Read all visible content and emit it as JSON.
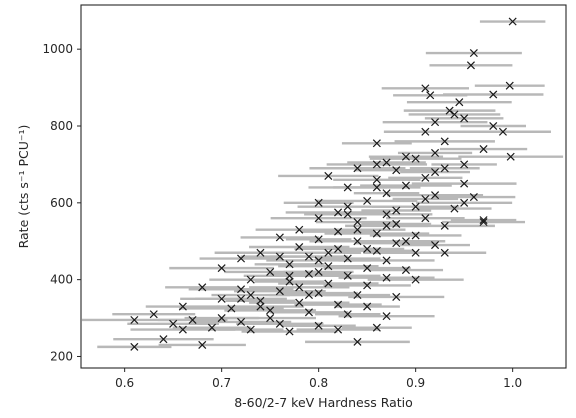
{
  "chart_data": {
    "type": "scatter",
    "title": "",
    "xlabel": "8-60/2-7 keV Hardness Ratio",
    "ylabel": "Rate (cts s⁻¹ PCU⁻¹)",
    "xlim": [
      0.555,
      1.055
    ],
    "ylim": [
      170,
      1115
    ],
    "xticks": [
      0.6,
      0.7,
      0.8,
      0.9,
      1.0
    ],
    "xtick_labels": [
      "0.6",
      "0.7",
      "0.8",
      "0.9",
      "1.0"
    ],
    "yticks": [
      200,
      400,
      600,
      800,
      1000
    ],
    "ytick_labels": [
      "200",
      "400",
      "600",
      "800",
      "1000"
    ],
    "grid": false,
    "legend": "none",
    "marker": "x",
    "marker_color": "#1a1a1a",
    "errorbar_color": "#b8b8b8",
    "x_error_typical": 0.045,
    "points": [
      [
        1.0,
        1072
      ],
      [
        0.96,
        990
      ],
      [
        0.957,
        958
      ],
      [
        0.997,
        905
      ],
      [
        0.98,
        882
      ],
      [
        0.91,
        898
      ],
      [
        0.915,
        880
      ],
      [
        0.945,
        862
      ],
      [
        0.935,
        840
      ],
      [
        0.95,
        820
      ],
      [
        0.98,
        800
      ],
      [
        0.99,
        785
      ],
      [
        0.91,
        785
      ],
      [
        0.86,
        755
      ],
      [
        0.93,
        760
      ],
      [
        0.97,
        740
      ],
      [
        0.92,
        730
      ],
      [
        0.998,
        720
      ],
      [
        0.9,
        715
      ],
      [
        0.87,
        705
      ],
      [
        0.95,
        700
      ],
      [
        0.84,
        690
      ],
      [
        0.88,
        685
      ],
      [
        0.93,
        690
      ],
      [
        0.81,
        670
      ],
      [
        0.86,
        660
      ],
      [
        0.91,
        665
      ],
      [
        0.95,
        650
      ],
      [
        0.89,
        645
      ],
      [
        0.83,
        640
      ],
      [
        0.87,
        625
      ],
      [
        0.92,
        620
      ],
      [
        0.96,
        615
      ],
      [
        0.8,
        600
      ],
      [
        0.85,
        605
      ],
      [
        0.9,
        590
      ],
      [
        0.94,
        585
      ],
      [
        0.82,
        575
      ],
      [
        0.87,
        570
      ],
      [
        0.91,
        560
      ],
      [
        0.97,
        555
      ],
      [
        0.8,
        560
      ],
      [
        0.84,
        550
      ],
      [
        0.88,
        545
      ],
      [
        0.93,
        540
      ],
      [
        0.78,
        530
      ],
      [
        0.82,
        525
      ],
      [
        0.86,
        520
      ],
      [
        0.9,
        515
      ],
      [
        0.76,
        510
      ],
      [
        0.8,
        505
      ],
      [
        0.84,
        500
      ],
      [
        0.88,
        495
      ],
      [
        0.92,
        490
      ],
      [
        0.78,
        485
      ],
      [
        0.82,
        480
      ],
      [
        0.86,
        475
      ],
      [
        0.9,
        470
      ],
      [
        0.74,
        470
      ],
      [
        0.79,
        460
      ],
      [
        0.83,
        455
      ],
      [
        0.87,
        450
      ],
      [
        0.72,
        455
      ],
      [
        0.77,
        440
      ],
      [
        0.81,
        435
      ],
      [
        0.85,
        430
      ],
      [
        0.89,
        425
      ],
      [
        0.7,
        430
      ],
      [
        0.75,
        420
      ],
      [
        0.79,
        415
      ],
      [
        0.83,
        410
      ],
      [
        0.87,
        405
      ],
      [
        0.73,
        400
      ],
      [
        0.77,
        395
      ],
      [
        0.81,
        390
      ],
      [
        0.85,
        385
      ],
      [
        0.68,
        380
      ],
      [
        0.72,
        375
      ],
      [
        0.76,
        370
      ],
      [
        0.8,
        365
      ],
      [
        0.84,
        360
      ],
      [
        0.88,
        355
      ],
      [
        0.7,
        350
      ],
      [
        0.74,
        345
      ],
      [
        0.78,
        340
      ],
      [
        0.82,
        335
      ],
      [
        0.66,
        330
      ],
      [
        0.71,
        325
      ],
      [
        0.75,
        320
      ],
      [
        0.79,
        315
      ],
      [
        0.83,
        310
      ],
      [
        0.87,
        305
      ],
      [
        0.63,
        310
      ],
      [
        0.67,
        295
      ],
      [
        0.72,
        290
      ],
      [
        0.76,
        285
      ],
      [
        0.8,
        280
      ],
      [
        0.61,
        295
      ],
      [
        0.65,
        285
      ],
      [
        0.69,
        275
      ],
      [
        0.73,
        270
      ],
      [
        0.77,
        265
      ],
      [
        0.82,
        270
      ],
      [
        0.86,
        275
      ],
      [
        0.64,
        245
      ],
      [
        0.68,
        230
      ],
      [
        0.61,
        225
      ],
      [
        0.84,
        238
      ],
      [
        0.75,
        300
      ],
      [
        0.79,
        360
      ],
      [
        0.85,
        330
      ],
      [
        0.9,
        400
      ],
      [
        0.93,
        470
      ],
      [
        0.88,
        580
      ],
      [
        0.83,
        590
      ],
      [
        0.86,
        640
      ],
      [
        0.89,
        720
      ],
      [
        0.92,
        810
      ],
      [
        0.94,
        830
      ],
      [
        0.76,
        460
      ],
      [
        0.81,
        470
      ],
      [
        0.84,
        530
      ],
      [
        0.87,
        540
      ],
      [
        0.8,
        420
      ],
      [
        0.78,
        380
      ],
      [
        0.74,
        330
      ],
      [
        0.7,
        300
      ],
      [
        0.66,
        270
      ],
      [
        0.72,
        350
      ],
      [
        0.89,
        500
      ],
      [
        0.91,
        610
      ],
      [
        0.95,
        600
      ],
      [
        0.97,
        550
      ],
      [
        0.92,
        680
      ],
      [
        0.86,
        700
      ],
      [
        0.83,
        570
      ],
      [
        0.85,
        480
      ],
      [
        0.8,
        450
      ],
      [
        0.77,
        410
      ],
      [
        0.73,
        360
      ]
    ]
  }
}
